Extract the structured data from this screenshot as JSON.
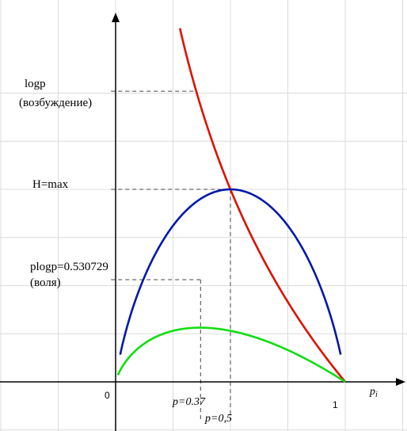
{
  "chart_data": {
    "type": "line",
    "xlabel": "pi",
    "xlim": [
      -0.5,
      1.27
    ],
    "ylim": [
      -0.2,
      1.56
    ],
    "grid": true,
    "x_ticks": [
      {
        "value": 0,
        "label": "0"
      },
      {
        "value": 1,
        "label": "1"
      }
    ],
    "series": [
      {
        "key": "logp",
        "color": "#dd1100",
        "x_range": [
          0.28,
          1.0
        ]
      },
      {
        "key": "entropy",
        "color": "#0018a8",
        "x_range": [
          0.02,
          0.98
        ]
      },
      {
        "key": "plogp",
        "color": "#11dd11",
        "x_range": [
          0.01,
          1.0
        ]
      }
    ],
    "annotations": {
      "logp_line1": "logp",
      "logp_line2": "(возбуждение)",
      "hmax": "H=max",
      "plogp_line1": "plogp=0.530729",
      "plogp_line2": "(воля)",
      "p037": "p=0.37",
      "p05": "p=0,5"
    },
    "marked_points": [
      {
        "key": "logp_at_0.35",
        "x": 0.35,
        "y": 1.51
      },
      {
        "key": "hmax",
        "x": 0.5,
        "y": 1.0
      },
      {
        "key": "plogp_max",
        "x": 0.37,
        "y": 0.531
      }
    ]
  }
}
